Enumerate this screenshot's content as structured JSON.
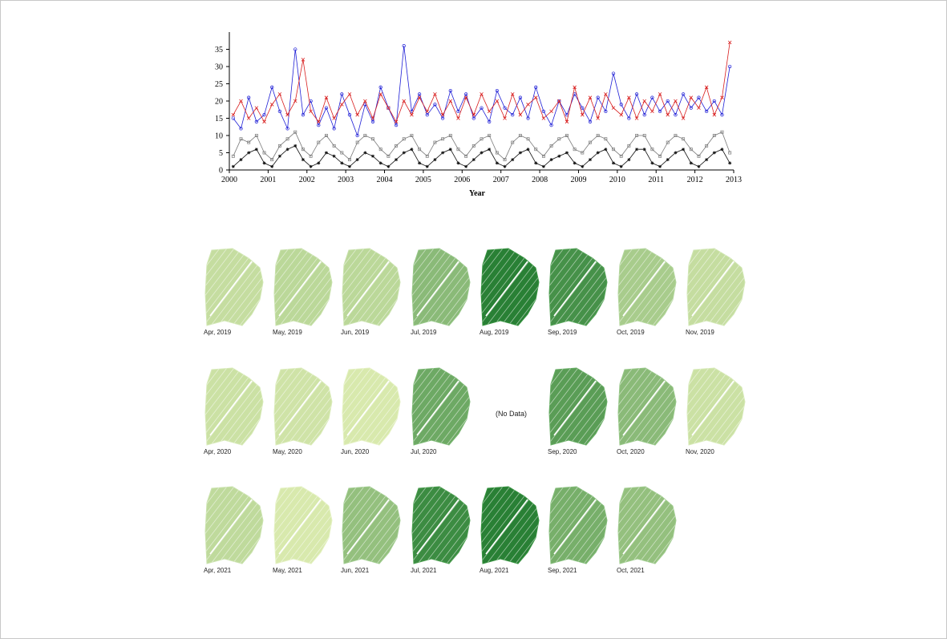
{
  "chart_data": {
    "type": "line",
    "title": "",
    "xlabel": "Year",
    "ylabel": "",
    "xlim": [
      2000,
      2013
    ],
    "ylim": [
      0,
      40
    ],
    "x_ticks": [
      "2000",
      "2001",
      "2002",
      "2003",
      "2004",
      "2005",
      "2006",
      "2007",
      "2008",
      "2009",
      "2010",
      "2011",
      "2012",
      "2013"
    ],
    "y_ticks": [
      "0",
      "5",
      "10",
      "15",
      "20",
      "25",
      "30",
      "35"
    ],
    "grid": false,
    "legend": "none",
    "series": [
      {
        "color": "#1f1fd6",
        "marker": "circle",
        "x": [
          2000.1,
          2000.3,
          2000.5,
          2000.7,
          2000.9,
          2001.1,
          2001.3,
          2001.5,
          2001.7,
          2001.9,
          2002.1,
          2002.3,
          2002.5,
          2002.7,
          2002.9,
          2003.1,
          2003.3,
          2003.5,
          2003.7,
          2003.9,
          2004.1,
          2004.3,
          2004.5,
          2004.7,
          2004.9,
          2005.1,
          2005.3,
          2005.5,
          2005.7,
          2005.9,
          2006.1,
          2006.3,
          2006.5,
          2006.7,
          2006.9,
          2007.1,
          2007.3,
          2007.5,
          2007.7,
          2007.9,
          2008.1,
          2008.3,
          2008.5,
          2008.7,
          2008.9,
          2009.1,
          2009.3,
          2009.5,
          2009.7,
          2009.9,
          2010.1,
          2010.3,
          2010.5,
          2010.7,
          2010.9,
          2011.1,
          2011.3,
          2011.5,
          2011.7,
          2011.9,
          2012.1,
          2012.3,
          2012.5,
          2012.7,
          2012.9
        ],
        "y": [
          15,
          12,
          21,
          14,
          16,
          24,
          17,
          12,
          35,
          16,
          20,
          13,
          18,
          12,
          22,
          16,
          10,
          19,
          14,
          24,
          18,
          13,
          36,
          17,
          22,
          16,
          19,
          15,
          23,
          17,
          22,
          15,
          18,
          14,
          23,
          18,
          16,
          21,
          15,
          24,
          17,
          13,
          20,
          16,
          22,
          18,
          14,
          21,
          17,
          28,
          19,
          15,
          22,
          16,
          21,
          17,
          20,
          16,
          22,
          18,
          21,
          17,
          20,
          16,
          30
        ]
      },
      {
        "color": "#d81e1e",
        "marker": "cross",
        "x": [
          2000.1,
          2000.3,
          2000.5,
          2000.7,
          2000.9,
          2001.1,
          2001.3,
          2001.5,
          2001.7,
          2001.9,
          2002.1,
          2002.3,
          2002.5,
          2002.7,
          2002.9,
          2003.1,
          2003.3,
          2003.5,
          2003.7,
          2003.9,
          2004.1,
          2004.3,
          2004.5,
          2004.7,
          2004.9,
          2005.1,
          2005.3,
          2005.5,
          2005.7,
          2005.9,
          2006.1,
          2006.3,
          2006.5,
          2006.7,
          2006.9,
          2007.1,
          2007.3,
          2007.5,
          2007.7,
          2007.9,
          2008.1,
          2008.3,
          2008.5,
          2008.7,
          2008.9,
          2009.1,
          2009.3,
          2009.5,
          2009.7,
          2009.9,
          2010.1,
          2010.3,
          2010.5,
          2010.7,
          2010.9,
          2011.1,
          2011.3,
          2011.5,
          2011.7,
          2011.9,
          2012.1,
          2012.3,
          2012.5,
          2012.7,
          2012.9
        ],
        "y": [
          16,
          20,
          15,
          18,
          14,
          19,
          22,
          16,
          20,
          32,
          17,
          14,
          21,
          15,
          19,
          22,
          16,
          20,
          15,
          22,
          18,
          14,
          20,
          16,
          21,
          17,
          22,
          16,
          20,
          15,
          21,
          16,
          22,
          17,
          20,
          15,
          22,
          16,
          19,
          21,
          15,
          17,
          20,
          14,
          24,
          16,
          21,
          15,
          22,
          18,
          16,
          21,
          15,
          20,
          17,
          22,
          16,
          20,
          15,
          21,
          18,
          24,
          16,
          21,
          37
        ]
      },
      {
        "color": "#7a7a7a",
        "marker": "square",
        "x": [
          2000.1,
          2000.3,
          2000.5,
          2000.7,
          2000.9,
          2001.1,
          2001.3,
          2001.5,
          2001.7,
          2001.9,
          2002.1,
          2002.3,
          2002.5,
          2002.7,
          2002.9,
          2003.1,
          2003.3,
          2003.5,
          2003.7,
          2003.9,
          2004.1,
          2004.3,
          2004.5,
          2004.7,
          2004.9,
          2005.1,
          2005.3,
          2005.5,
          2005.7,
          2005.9,
          2006.1,
          2006.3,
          2006.5,
          2006.7,
          2006.9,
          2007.1,
          2007.3,
          2007.5,
          2007.7,
          2007.9,
          2008.1,
          2008.3,
          2008.5,
          2008.7,
          2008.9,
          2009.1,
          2009.3,
          2009.5,
          2009.7,
          2009.9,
          2010.1,
          2010.3,
          2010.5,
          2010.7,
          2010.9,
          2011.1,
          2011.3,
          2011.5,
          2011.7,
          2011.9,
          2012.1,
          2012.3,
          2012.5,
          2012.7,
          2012.9
        ],
        "y": [
          4,
          9,
          8,
          10,
          5,
          3,
          7,
          9,
          11,
          6,
          4,
          8,
          10,
          7,
          5,
          3,
          8,
          10,
          9,
          6,
          4,
          7,
          9,
          10,
          6,
          4,
          8,
          9,
          10,
          6,
          4,
          7,
          9,
          10,
          5,
          3,
          8,
          10,
          9,
          6,
          4,
          7,
          9,
          10,
          6,
          5,
          8,
          10,
          9,
          6,
          4,
          7,
          10,
          10,
          6,
          4,
          8,
          10,
          9,
          6,
          4,
          7,
          10,
          11,
          5
        ]
      },
      {
        "color": "#111111",
        "marker": "star",
        "x": [
          2000.1,
          2000.3,
          2000.5,
          2000.7,
          2000.9,
          2001.1,
          2001.3,
          2001.5,
          2001.7,
          2001.9,
          2002.1,
          2002.3,
          2002.5,
          2002.7,
          2002.9,
          2003.1,
          2003.3,
          2003.5,
          2003.7,
          2003.9,
          2004.1,
          2004.3,
          2004.5,
          2004.7,
          2004.9,
          2005.1,
          2005.3,
          2005.5,
          2005.7,
          2005.9,
          2006.1,
          2006.3,
          2006.5,
          2006.7,
          2006.9,
          2007.1,
          2007.3,
          2007.5,
          2007.7,
          2007.9,
          2008.1,
          2008.3,
          2008.5,
          2008.7,
          2008.9,
          2009.1,
          2009.3,
          2009.5,
          2009.7,
          2009.9,
          2010.1,
          2010.3,
          2010.5,
          2010.7,
          2010.9,
          2011.1,
          2011.3,
          2011.5,
          2011.7,
          2011.9,
          2012.1,
          2012.3,
          2012.5,
          2012.7,
          2012.9
        ],
        "y": [
          1,
          3,
          5,
          6,
          2,
          1,
          4,
          6,
          7,
          3,
          1,
          2,
          5,
          4,
          2,
          1,
          3,
          5,
          4,
          2,
          1,
          3,
          5,
          6,
          2,
          1,
          3,
          5,
          6,
          2,
          1,
          3,
          5,
          6,
          2,
          1,
          3,
          5,
          6,
          2,
          1,
          3,
          4,
          5,
          2,
          1,
          3,
          5,
          6,
          2,
          1,
          3,
          6,
          6,
          2,
          1,
          3,
          5,
          6,
          2,
          1,
          3,
          5,
          6,
          2
        ]
      }
    ]
  },
  "maps": {
    "rows": [
      {
        "panels": [
          {
            "label": "Apr, 2019",
            "level": 0.15,
            "no_data": false
          },
          {
            "label": "May, 2019",
            "level": 0.2,
            "no_data": false
          },
          {
            "label": "Jun, 2019",
            "level": 0.2,
            "no_data": false
          },
          {
            "label": "Jul, 2019",
            "level": 0.45,
            "no_data": false
          },
          {
            "label": "Aug, 2019",
            "level": 0.95,
            "no_data": false
          },
          {
            "label": "Sep, 2019",
            "level": 0.8,
            "no_data": false
          },
          {
            "label": "Oct, 2019",
            "level": 0.3,
            "no_data": false
          },
          {
            "label": "Nov, 2019",
            "level": 0.15,
            "no_data": false
          }
        ]
      },
      {
        "panels": [
          {
            "label": "Apr, 2020",
            "level": 0.12,
            "no_data": false
          },
          {
            "label": "May, 2020",
            "level": 0.1,
            "no_data": false
          },
          {
            "label": "Jun, 2020",
            "level": 0.05,
            "no_data": false
          },
          {
            "label": "Jul, 2020",
            "level": 0.6,
            "no_data": false
          },
          {
            "label": "",
            "level": 0,
            "no_data": true,
            "no_data_text": "(No Data)"
          },
          {
            "label": "Sep, 2020",
            "level": 0.7,
            "no_data": false
          },
          {
            "label": "Oct, 2020",
            "level": 0.45,
            "no_data": false
          },
          {
            "label": "Nov, 2020",
            "level": 0.12,
            "no_data": false
          }
        ]
      },
      {
        "panels": [
          {
            "label": "Apr, 2021",
            "level": 0.18,
            "no_data": false
          },
          {
            "label": "May, 2021",
            "level": 0.05,
            "no_data": false
          },
          {
            "label": "Jun, 2021",
            "level": 0.4,
            "no_data": false
          },
          {
            "label": "Jul, 2021",
            "level": 0.85,
            "no_data": false
          },
          {
            "label": "Aug, 2021",
            "level": 0.95,
            "no_data": false
          },
          {
            "label": "Sep, 2021",
            "level": 0.55,
            "no_data": false
          },
          {
            "label": "Oct, 2021",
            "level": 0.4,
            "no_data": false
          }
        ]
      }
    ]
  }
}
